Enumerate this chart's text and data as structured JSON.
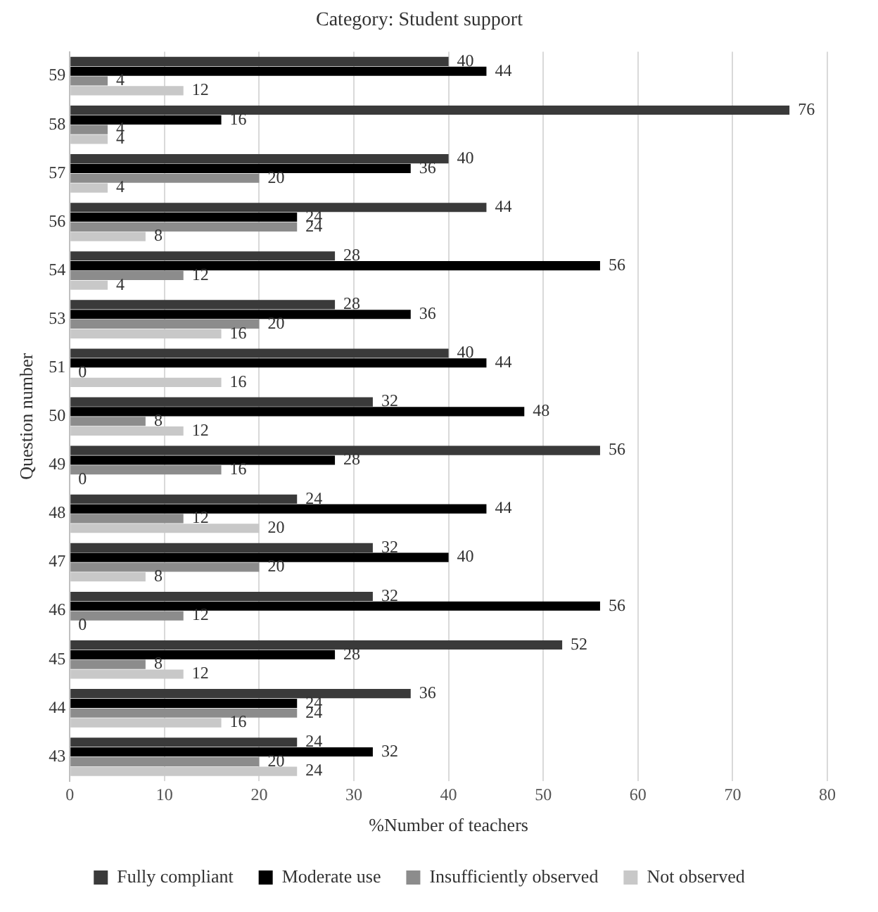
{
  "chart_data": {
    "type": "bar",
    "orientation": "horizontal",
    "title": "Category: Student support",
    "xlabel": "%Number of teachers",
    "ylabel": "Question number",
    "categories": [
      "59",
      "58",
      "57",
      "56",
      "54",
      "53",
      "51",
      "50",
      "49",
      "48",
      "47",
      "46",
      "45",
      "44",
      "43"
    ],
    "series": [
      {
        "name": "Fully compliant",
        "color": "#3a3a3a",
        "values": [
          40,
          76,
          40,
          44,
          28,
          28,
          40,
          32,
          56,
          24,
          32,
          32,
          52,
          36,
          24
        ]
      },
      {
        "name": "Moderate use",
        "color": "#000000",
        "values": [
          44,
          16,
          36,
          24,
          56,
          36,
          44,
          48,
          28,
          44,
          40,
          56,
          28,
          24,
          32
        ]
      },
      {
        "name": "Insufficiently observed",
        "color": "#8c8c8c",
        "values": [
          4,
          4,
          20,
          24,
          12,
          20,
          0,
          8,
          16,
          12,
          20,
          12,
          8,
          24,
          20
        ]
      },
      {
        "name": "Not observed",
        "color": "#c8c8c8",
        "values": [
          12,
          4,
          4,
          8,
          4,
          16,
          16,
          12,
          0,
          20,
          8,
          0,
          12,
          16,
          24
        ]
      }
    ],
    "xlim": [
      0,
      80
    ],
    "xticks": [
      0,
      10,
      20,
      30,
      40,
      50,
      60,
      70,
      80
    ],
    "grid": "x",
    "legend": "bottom",
    "data_labels": true
  }
}
